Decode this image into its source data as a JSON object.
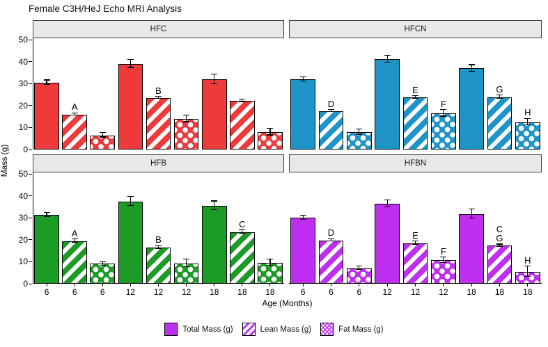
{
  "chart_data": {
    "type": "bar",
    "title": "Female C3H/HeJ Echo MRI Analysis",
    "xlabel": "Age (Months)",
    "ylabel": "Mass (g)",
    "ylim": [
      0,
      50.7
    ],
    "yticks": [
      0,
      10,
      20,
      30,
      40,
      50
    ],
    "age_labels": [
      "6",
      "6",
      "6",
      "12",
      "12",
      "12",
      "18",
      "18",
      "18"
    ],
    "grid": "off",
    "legend_position": "bottom",
    "legend_color": "#bf2fef",
    "series": [
      {
        "name": "Total Mass (g)",
        "pattern": "solid"
      },
      {
        "name": "Lean Mass (g)",
        "pattern": "stripes"
      },
      {
        "name": "Fat Mass (g)",
        "pattern": "dots"
      }
    ],
    "facets": [
      {
        "name": "HFC",
        "color": "#ee3a3a",
        "row": 0,
        "col": 0,
        "bars": [
          {
            "age": "6",
            "series": "total",
            "value": 30.5,
            "err": 1.0,
            "letters": []
          },
          {
            "age": "6",
            "series": "lean",
            "value": 16.0,
            "err": 0.5,
            "letters": [
              "A"
            ]
          },
          {
            "age": "6",
            "series": "fat",
            "value": 6.5,
            "err": 1.0,
            "letters": []
          },
          {
            "age": "12",
            "series": "total",
            "value": 39.0,
            "err": 1.8,
            "letters": []
          },
          {
            "age": "12",
            "series": "lean",
            "value": 23.5,
            "err": 0.5,
            "letters": [
              "B"
            ]
          },
          {
            "age": "12",
            "series": "fat",
            "value": 14.0,
            "err": 1.5,
            "letters": []
          },
          {
            "age": "18",
            "series": "total",
            "value": 32.0,
            "err": 2.3,
            "letters": []
          },
          {
            "age": "18",
            "series": "lean",
            "value": 22.2,
            "err": 0.7,
            "letters": []
          },
          {
            "age": "18",
            "series": "fat",
            "value": 8.0,
            "err": 1.5,
            "letters": []
          }
        ]
      },
      {
        "name": "HFCN",
        "color": "#1e94c8",
        "row": 0,
        "col": 1,
        "bars": [
          {
            "age": "6",
            "series": "total",
            "value": 32.0,
            "err": 1.0,
            "letters": []
          },
          {
            "age": "6",
            "series": "lean",
            "value": 17.5,
            "err": 0.5,
            "letters": [
              "D"
            ]
          },
          {
            "age": "6",
            "series": "fat",
            "value": 8.0,
            "err": 1.2,
            "letters": []
          },
          {
            "age": "12",
            "series": "total",
            "value": 41.2,
            "err": 1.5,
            "letters": []
          },
          {
            "age": "12",
            "series": "lean",
            "value": 23.8,
            "err": 0.6,
            "letters": [
              "E"
            ]
          },
          {
            "age": "12",
            "series": "fat",
            "value": 16.5,
            "err": 1.5,
            "letters": [
              "F"
            ]
          },
          {
            "age": "18",
            "series": "total",
            "value": 37.0,
            "err": 1.5,
            "letters": []
          },
          {
            "age": "18",
            "series": "lean",
            "value": 23.8,
            "err": 0.8,
            "letters": [
              "G"
            ]
          },
          {
            "age": "18",
            "series": "fat",
            "value": 12.5,
            "err": 1.5,
            "letters": [
              "H"
            ]
          }
        ]
      },
      {
        "name": "HFB",
        "color": "#1c9c27",
        "row": 1,
        "col": 0,
        "bars": [
          {
            "age": "6",
            "series": "total",
            "value": 31.4,
            "err": 1.0,
            "letters": []
          },
          {
            "age": "6",
            "series": "lean",
            "value": 19.4,
            "err": 0.8,
            "letters": [
              "A"
            ]
          },
          {
            "age": "6",
            "series": "fat",
            "value": 9.1,
            "err": 0.8,
            "letters": []
          },
          {
            "age": "12",
            "series": "total",
            "value": 37.5,
            "err": 2.0,
            "letters": []
          },
          {
            "age": "12",
            "series": "lean",
            "value": 16.5,
            "err": 0.7,
            "letters": [
              "B"
            ]
          },
          {
            "age": "12",
            "series": "fat",
            "value": 9.3,
            "err": 1.8,
            "letters": []
          },
          {
            "age": "18",
            "series": "total",
            "value": 35.5,
            "err": 2.0,
            "letters": []
          },
          {
            "age": "18",
            "series": "lean",
            "value": 23.5,
            "err": 0.8,
            "letters": [
              "C"
            ]
          },
          {
            "age": "18",
            "series": "fat",
            "value": 9.6,
            "err": 1.5,
            "letters": []
          }
        ]
      },
      {
        "name": "HFBN",
        "color": "#bf2fef",
        "row": 1,
        "col": 1,
        "bars": [
          {
            "age": "6",
            "series": "total",
            "value": 30.0,
            "err": 1.0,
            "letters": []
          },
          {
            "age": "6",
            "series": "lean",
            "value": 19.8,
            "err": 0.5,
            "letters": [
              "D"
            ]
          },
          {
            "age": "6",
            "series": "fat",
            "value": 7.0,
            "err": 0.8,
            "letters": []
          },
          {
            "age": "12",
            "series": "total",
            "value": 36.4,
            "err": 1.5,
            "letters": []
          },
          {
            "age": "12",
            "series": "lean",
            "value": 18.5,
            "err": 0.7,
            "letters": [
              "E"
            ]
          },
          {
            "age": "12",
            "series": "fat",
            "value": 10.8,
            "err": 1.2,
            "letters": [
              "F"
            ]
          },
          {
            "age": "18",
            "series": "total",
            "value": 31.8,
            "err": 2.0,
            "letters": []
          },
          {
            "age": "18",
            "series": "lean",
            "value": 17.3,
            "err": 0.6,
            "letters": [
              "C",
              "G"
            ]
          },
          {
            "age": "18",
            "series": "fat",
            "value": 5.5,
            "err": 2.3,
            "letters": [
              "H"
            ]
          }
        ]
      }
    ]
  }
}
